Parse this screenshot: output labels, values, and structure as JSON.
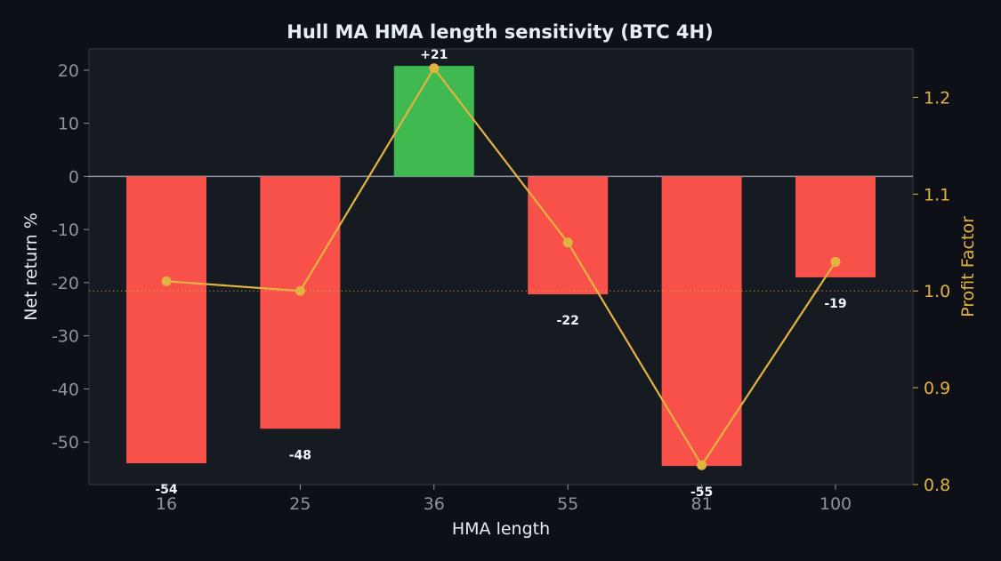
{
  "chart_data": {
    "type": "bar",
    "title": "Hull MA HMA length sensitivity (BTC 4H)",
    "xlabel": "HMA length",
    "ylabel": "Net return %",
    "y2label": "Profit Factor",
    "categories": [
      "16",
      "25",
      "36",
      "55",
      "81",
      "100"
    ],
    "series": [
      {
        "type": "bar",
        "axis": "left",
        "values": [
          -54,
          -47.5,
          20.8,
          -22.2,
          -54.5,
          -19
        ],
        "data_labels": [
          "-54",
          "-48",
          "+21",
          "-22",
          "-55",
          "-19"
        ]
      },
      {
        "type": "line",
        "axis": "right",
        "values": [
          1.01,
          1.0,
          1.23,
          1.05,
          0.82,
          1.03
        ]
      }
    ],
    "ylim": [
      -58,
      24
    ],
    "y_ticks": [
      20,
      10,
      0,
      -10,
      -20,
      -30,
      -40,
      -50
    ],
    "y_tick_labels": [
      "20",
      "10",
      "0",
      "-10",
      "-20",
      "-30",
      "-40",
      "-50"
    ],
    "y2lim": [
      0.8,
      1.25
    ],
    "y2_ticks": [
      1.2,
      1.1,
      1.0,
      0.9,
      0.8
    ],
    "y2_tick_labels": [
      "1.2",
      "1.1",
      "1.0",
      "0.9",
      "0.8"
    ],
    "reference_line": {
      "axis": "right",
      "value": 1.0
    },
    "grid": false,
    "colors": {
      "positive_bar": "#3fb950",
      "negative_bar": "#f85149",
      "line": "#e3b341",
      "figure_bg": "#0d1117",
      "plot_bg": "#161b22",
      "zero_line": "#8b949e"
    }
  }
}
